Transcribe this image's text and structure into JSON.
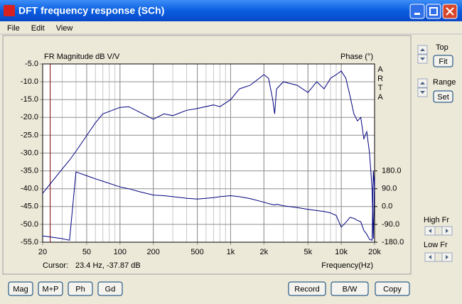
{
  "window": {
    "title": "DFT frequency response (SCh)"
  },
  "menu": [
    "File",
    "Edit",
    "View"
  ],
  "chart_data": {
    "type": "line",
    "title": "FR Magnitude dB V/V",
    "y2_label": "Phase (°)",
    "x_label": "Frequency(Hz)",
    "side_label": "ARTA",
    "x_log": true,
    "grid": true,
    "xlim": [
      20,
      20000
    ],
    "xticks": [
      20,
      50,
      100,
      200,
      500,
      {
        "value": 1000,
        "label": "1k"
      },
      {
        "value": 2000,
        "label": "2k"
      },
      {
        "value": 5000,
        "label": "5k"
      },
      {
        "value": 10000,
        "label": "10k"
      },
      {
        "value": 20000,
        "label": "20k"
      }
    ],
    "ylim": [
      -55,
      -5
    ],
    "yticks": [
      {
        "value": -5,
        "label": "-5.0"
      },
      {
        "value": -10,
        "label": "-10.0"
      },
      {
        "value": -15,
        "label": "-15.0"
      },
      {
        "value": -20,
        "label": "-20.0"
      },
      {
        "value": -25,
        "label": "-25.0"
      },
      {
        "value": -30,
        "label": "-30.0"
      },
      {
        "value": -35,
        "label": "-35.0"
      },
      {
        "value": -40,
        "label": "-40.0"
      },
      {
        "value": -45,
        "label": "-45.0"
      },
      {
        "value": -50,
        "label": "-50.0"
      },
      {
        "value": -55,
        "label": "-55.0"
      }
    ],
    "y2lim": [
      -180,
      720
    ],
    "y2ticks": [
      {
        "value": 180,
        "label": "180.0"
      },
      {
        "value": 90,
        "label": "90.0"
      },
      {
        "value": 0,
        "label": "0.0"
      },
      {
        "value": -90,
        "label": "-90.0"
      },
      {
        "value": -180,
        "label": "-180.0"
      }
    ],
    "x": [
      20,
      30,
      35,
      40,
      60,
      70,
      100,
      120,
      150,
      200,
      250,
      300,
      400,
      500,
      700,
      800,
      1000,
      1200,
      1500,
      2000,
      2200,
      2400,
      2500,
      2600,
      3000,
      4000,
      5000,
      6000,
      7000,
      8000,
      9000,
      10000,
      11000,
      12000,
      13000,
      14000,
      15000,
      16000,
      17000,
      18000,
      19000,
      19500,
      20000
    ],
    "series": [
      {
        "name": "Magnitude",
        "color": "#000080",
        "values": [
          -41.3,
          -34.5,
          -32,
          -29.5,
          -21.5,
          -19,
          -17.2,
          -17,
          -18.5,
          -20.5,
          -19,
          -19.5,
          -18,
          -17.5,
          -16.5,
          -17,
          -15,
          -12,
          -11,
          -8,
          -9,
          -15,
          -19,
          -12,
          -10,
          -11,
          -13,
          -10,
          -12,
          -9,
          -8,
          -7,
          -9,
          -14,
          -19,
          -21,
          -20,
          -26,
          -24,
          -30,
          -40,
          -54,
          -37
        ]
      },
      {
        "name": "Phase",
        "color": "#000080",
        "axis": "y2",
        "values": [
          -148,
          -162,
          -170,
          175,
          140,
          128,
          99,
          90,
          75,
          58,
          55,
          50,
          42,
          38,
          45,
          50,
          55,
          50,
          40,
          22,
          15,
          10,
          8,
          12,
          4,
          -5,
          -14,
          -20,
          -25,
          -32,
          -45,
          -104,
          -80,
          -54,
          -60,
          -70,
          -77,
          -120,
          -140,
          -166,
          -170,
          180,
          90
        ]
      }
    ],
    "cursor": {
      "label": "Cursor:",
      "text": "23.4 Hz, -37.87 dB",
      "x": 23.4,
      "color": "#800000"
    }
  },
  "side_controls": {
    "top": "Top",
    "fit": "Fit",
    "range": "Range",
    "set": "Set",
    "high": "High Fr",
    "low": "Low Fr"
  },
  "bottom_left_buttons": [
    "Mag",
    "M+P",
    "Ph",
    "Gd"
  ],
  "bottom_right_buttons": [
    "Record",
    "B/W",
    "Copy"
  ]
}
